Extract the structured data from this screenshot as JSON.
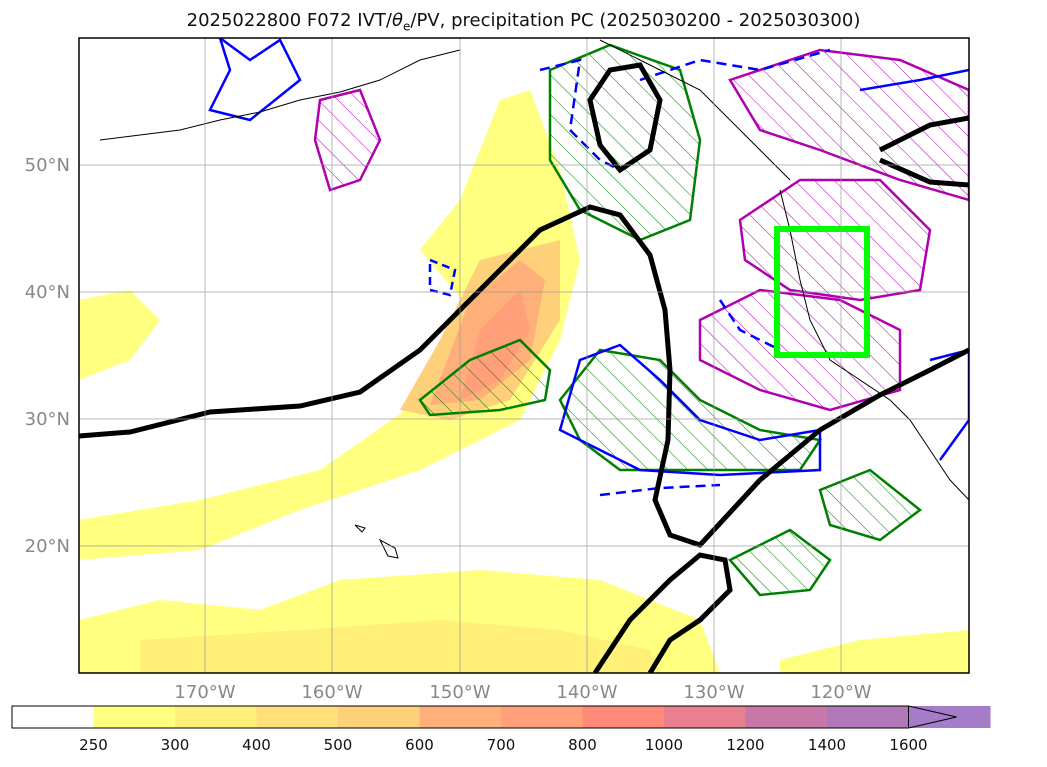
{
  "title": {
    "prefix": "2025022800 F072 IVT/",
    "theta": "θ",
    "theta_sub": "e",
    "suffix": "/PV, precipitation PC (2025030200 - 2025030300)"
  },
  "map": {
    "lat_labels": [
      "50°N",
      "40°N",
      "30°N",
      "20°N"
    ],
    "lon_labels": [
      "170°W",
      "160°W",
      "150°W",
      "140°W",
      "130°W",
      "120°W"
    ],
    "highlight_box_color": "#00ff00",
    "pv_contour_color": "#000000",
    "theta_pos_color": "#0000ff",
    "precip_pc_color": "#008000",
    "hatch_magenta_color": "#c000c0"
  },
  "colorbar": {
    "labels": [
      "250",
      "300",
      "400",
      "500",
      "600",
      "700",
      "800",
      "1000",
      "1200",
      "1400",
      "1600"
    ],
    "colors": [
      "#ffffff",
      "#ffff80",
      "#fff07a",
      "#ffe07a",
      "#ffd07a",
      "#ffb07a",
      "#ffa07a",
      "#ff8a7a",
      "#e88090",
      "#c878a8",
      "#b078b8",
      "#a47cc8"
    ]
  }
}
